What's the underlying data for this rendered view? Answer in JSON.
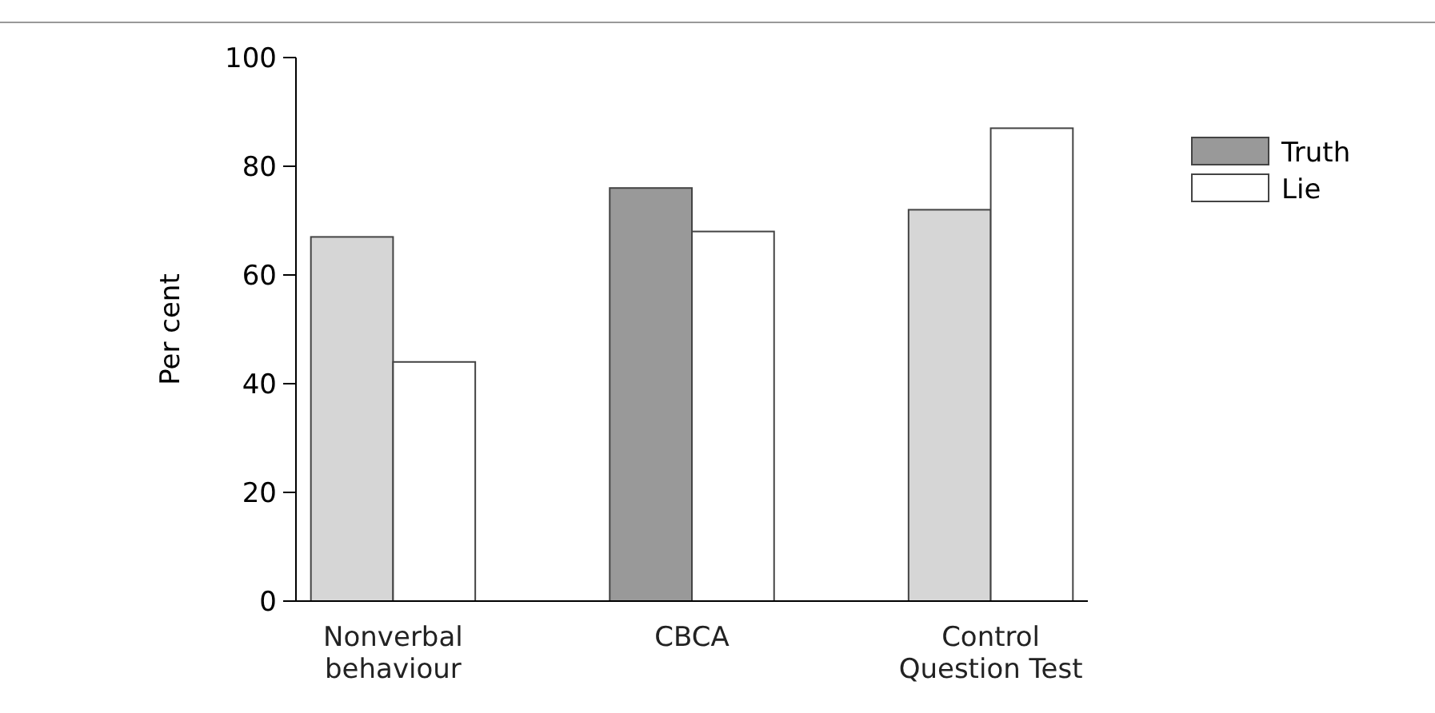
{
  "chart_data": {
    "type": "bar",
    "ylabel": "Per cent",
    "categories": [
      "Nonverbal behaviour",
      "CBCA",
      "Control Question Test"
    ],
    "series": [
      {
        "name": "Truth",
        "color": "#999999",
        "colors": [
          "#d6d6d6",
          "#999999",
          "#d6d6d6"
        ],
        "values": [
          67,
          76,
          72
        ]
      },
      {
        "name": "Lie",
        "color": "#ffffff",
        "colors": [
          "#ffffff",
          "#ffffff",
          "#ffffff"
        ],
        "values": [
          44,
          68,
          87
        ]
      }
    ],
    "ylim": [
      0,
      100
    ],
    "yticks": [
      0,
      20,
      40,
      60,
      80,
      100
    ],
    "grid": false,
    "legend": "top right"
  }
}
